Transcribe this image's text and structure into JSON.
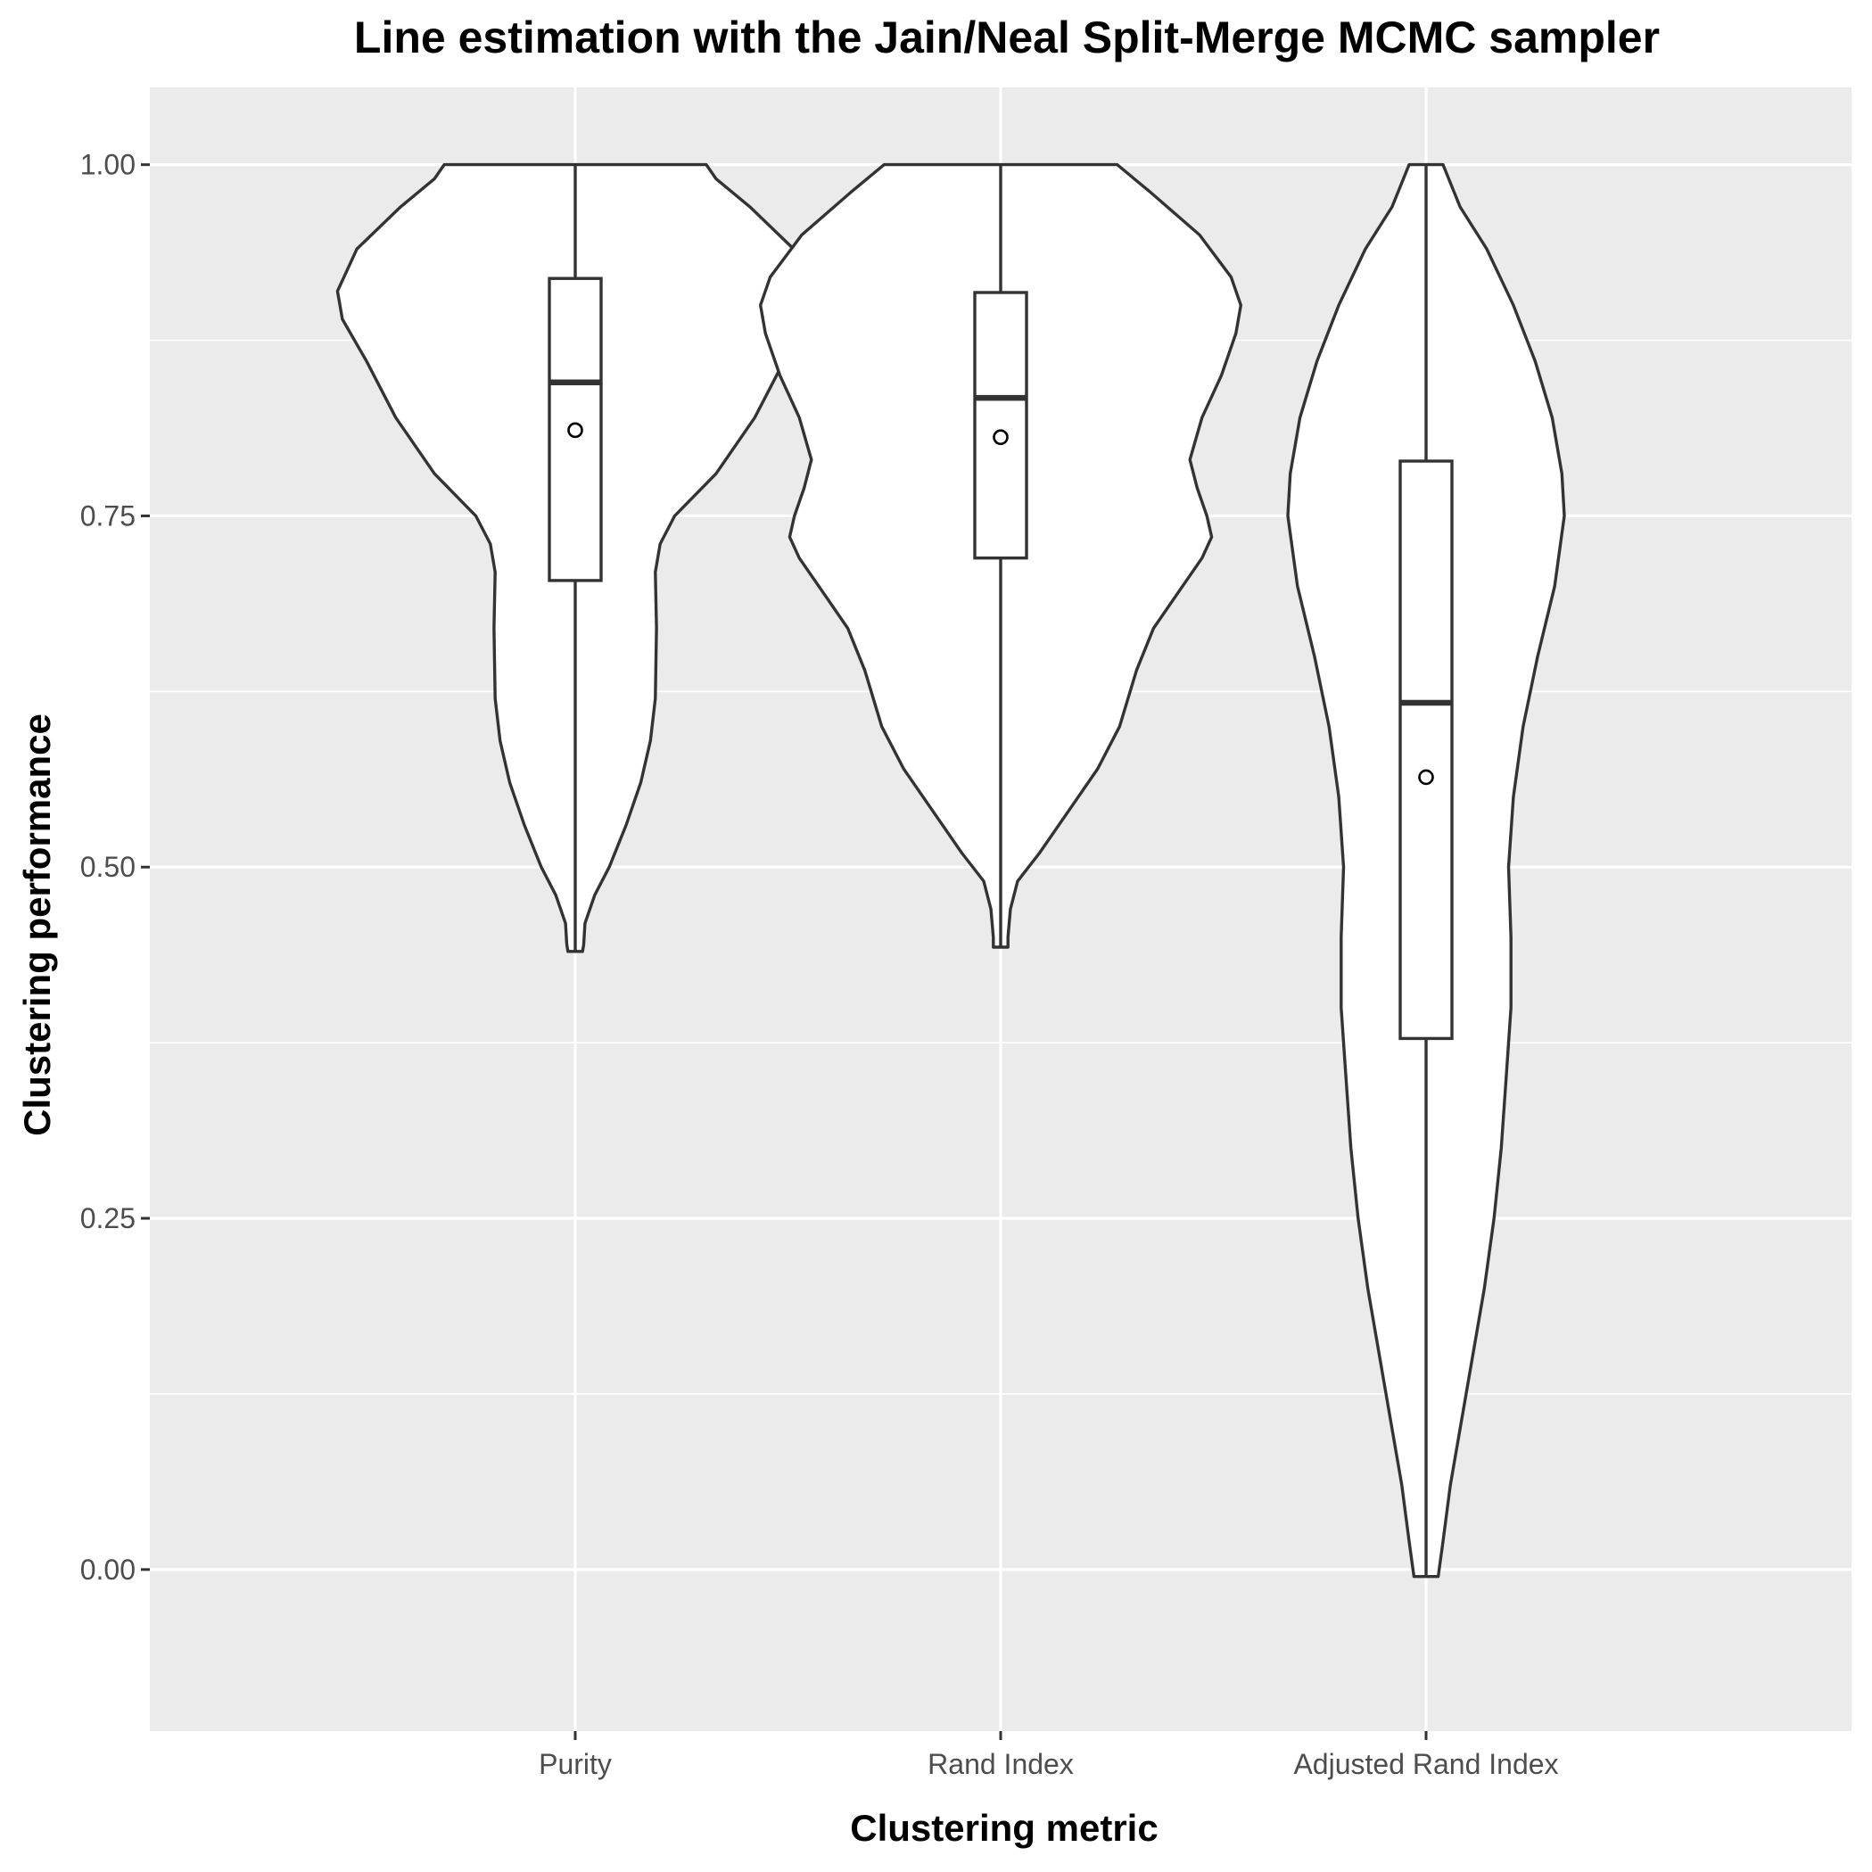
{
  "chart_data": {
    "type": "violin",
    "title": "Line estimation with the Jain/Neal Split-Merge MCMC sampler",
    "xlabel": "Clustering metric",
    "ylabel": "Clustering performance",
    "categories": [
      "Purity",
      "Rand Index",
      "Adjusted Rand Index"
    ],
    "ylim": [
      -0.115,
      1.055
    ],
    "yticks": [
      0.0,
      0.25,
      0.5,
      0.75,
      1.0
    ],
    "ytick_labels": [
      "0.00",
      "0.25",
      "0.50",
      "0.75",
      "1.00"
    ],
    "grid": true,
    "background": "#ebebeb",
    "series": [
      {
        "category": "Purity",
        "min": 0.44,
        "q1": 0.704,
        "median": 0.845,
        "q3": 0.919,
        "max": 1.0,
        "mean": 0.811,
        "density_y": [
          0.44,
          0.445,
          0.46,
          0.48,
          0.5,
          0.53,
          0.56,
          0.59,
          0.62,
          0.67,
          0.71,
          0.73,
          0.75,
          0.78,
          0.82,
          0.86,
          0.89,
          0.91,
          0.94,
          0.97,
          0.99,
          1.0
        ],
        "density_width": [
          0.03,
          0.035,
          0.04,
          0.08,
          0.14,
          0.21,
          0.27,
          0.31,
          0.33,
          0.335,
          0.33,
          0.35,
          0.41,
          0.58,
          0.74,
          0.86,
          0.96,
          0.98,
          0.9,
          0.72,
          0.58,
          0.54
        ]
      },
      {
        "category": "Rand Index",
        "min": 0.443,
        "q1": 0.72,
        "median": 0.834,
        "q3": 0.909,
        "max": 1.0,
        "mean": 0.806,
        "density_y": [
          0.443,
          0.45,
          0.47,
          0.49,
          0.51,
          0.54,
          0.57,
          0.6,
          0.64,
          0.67,
          0.7,
          0.72,
          0.735,
          0.75,
          0.77,
          0.79,
          0.82,
          0.85,
          0.88,
          0.9,
          0.92,
          0.95,
          0.98,
          1.0
        ],
        "density_width": [
          0.03,
          0.03,
          0.04,
          0.07,
          0.16,
          0.28,
          0.4,
          0.49,
          0.56,
          0.63,
          0.75,
          0.83,
          0.87,
          0.85,
          0.81,
          0.78,
          0.83,
          0.91,
          0.97,
          0.99,
          0.95,
          0.82,
          0.62,
          0.48
        ]
      },
      {
        "category": "Adjusted Rand Index",
        "min": -0.005,
        "q1": 0.378,
        "median": 0.617,
        "q3": 0.789,
        "max": 1.0,
        "mean": 0.564,
        "density_y": [
          -0.005,
          0.02,
          0.06,
          0.1,
          0.15,
          0.2,
          0.25,
          0.3,
          0.35,
          0.4,
          0.45,
          0.5,
          0.55,
          0.6,
          0.65,
          0.7,
          0.75,
          0.78,
          0.82,
          0.86,
          0.9,
          0.94,
          0.97,
          1.0
        ],
        "density_width": [
          0.05,
          0.07,
          0.1,
          0.14,
          0.19,
          0.24,
          0.28,
          0.31,
          0.33,
          0.35,
          0.35,
          0.34,
          0.36,
          0.4,
          0.46,
          0.53,
          0.57,
          0.56,
          0.52,
          0.45,
          0.36,
          0.25,
          0.14,
          0.07
        ]
      }
    ]
  }
}
